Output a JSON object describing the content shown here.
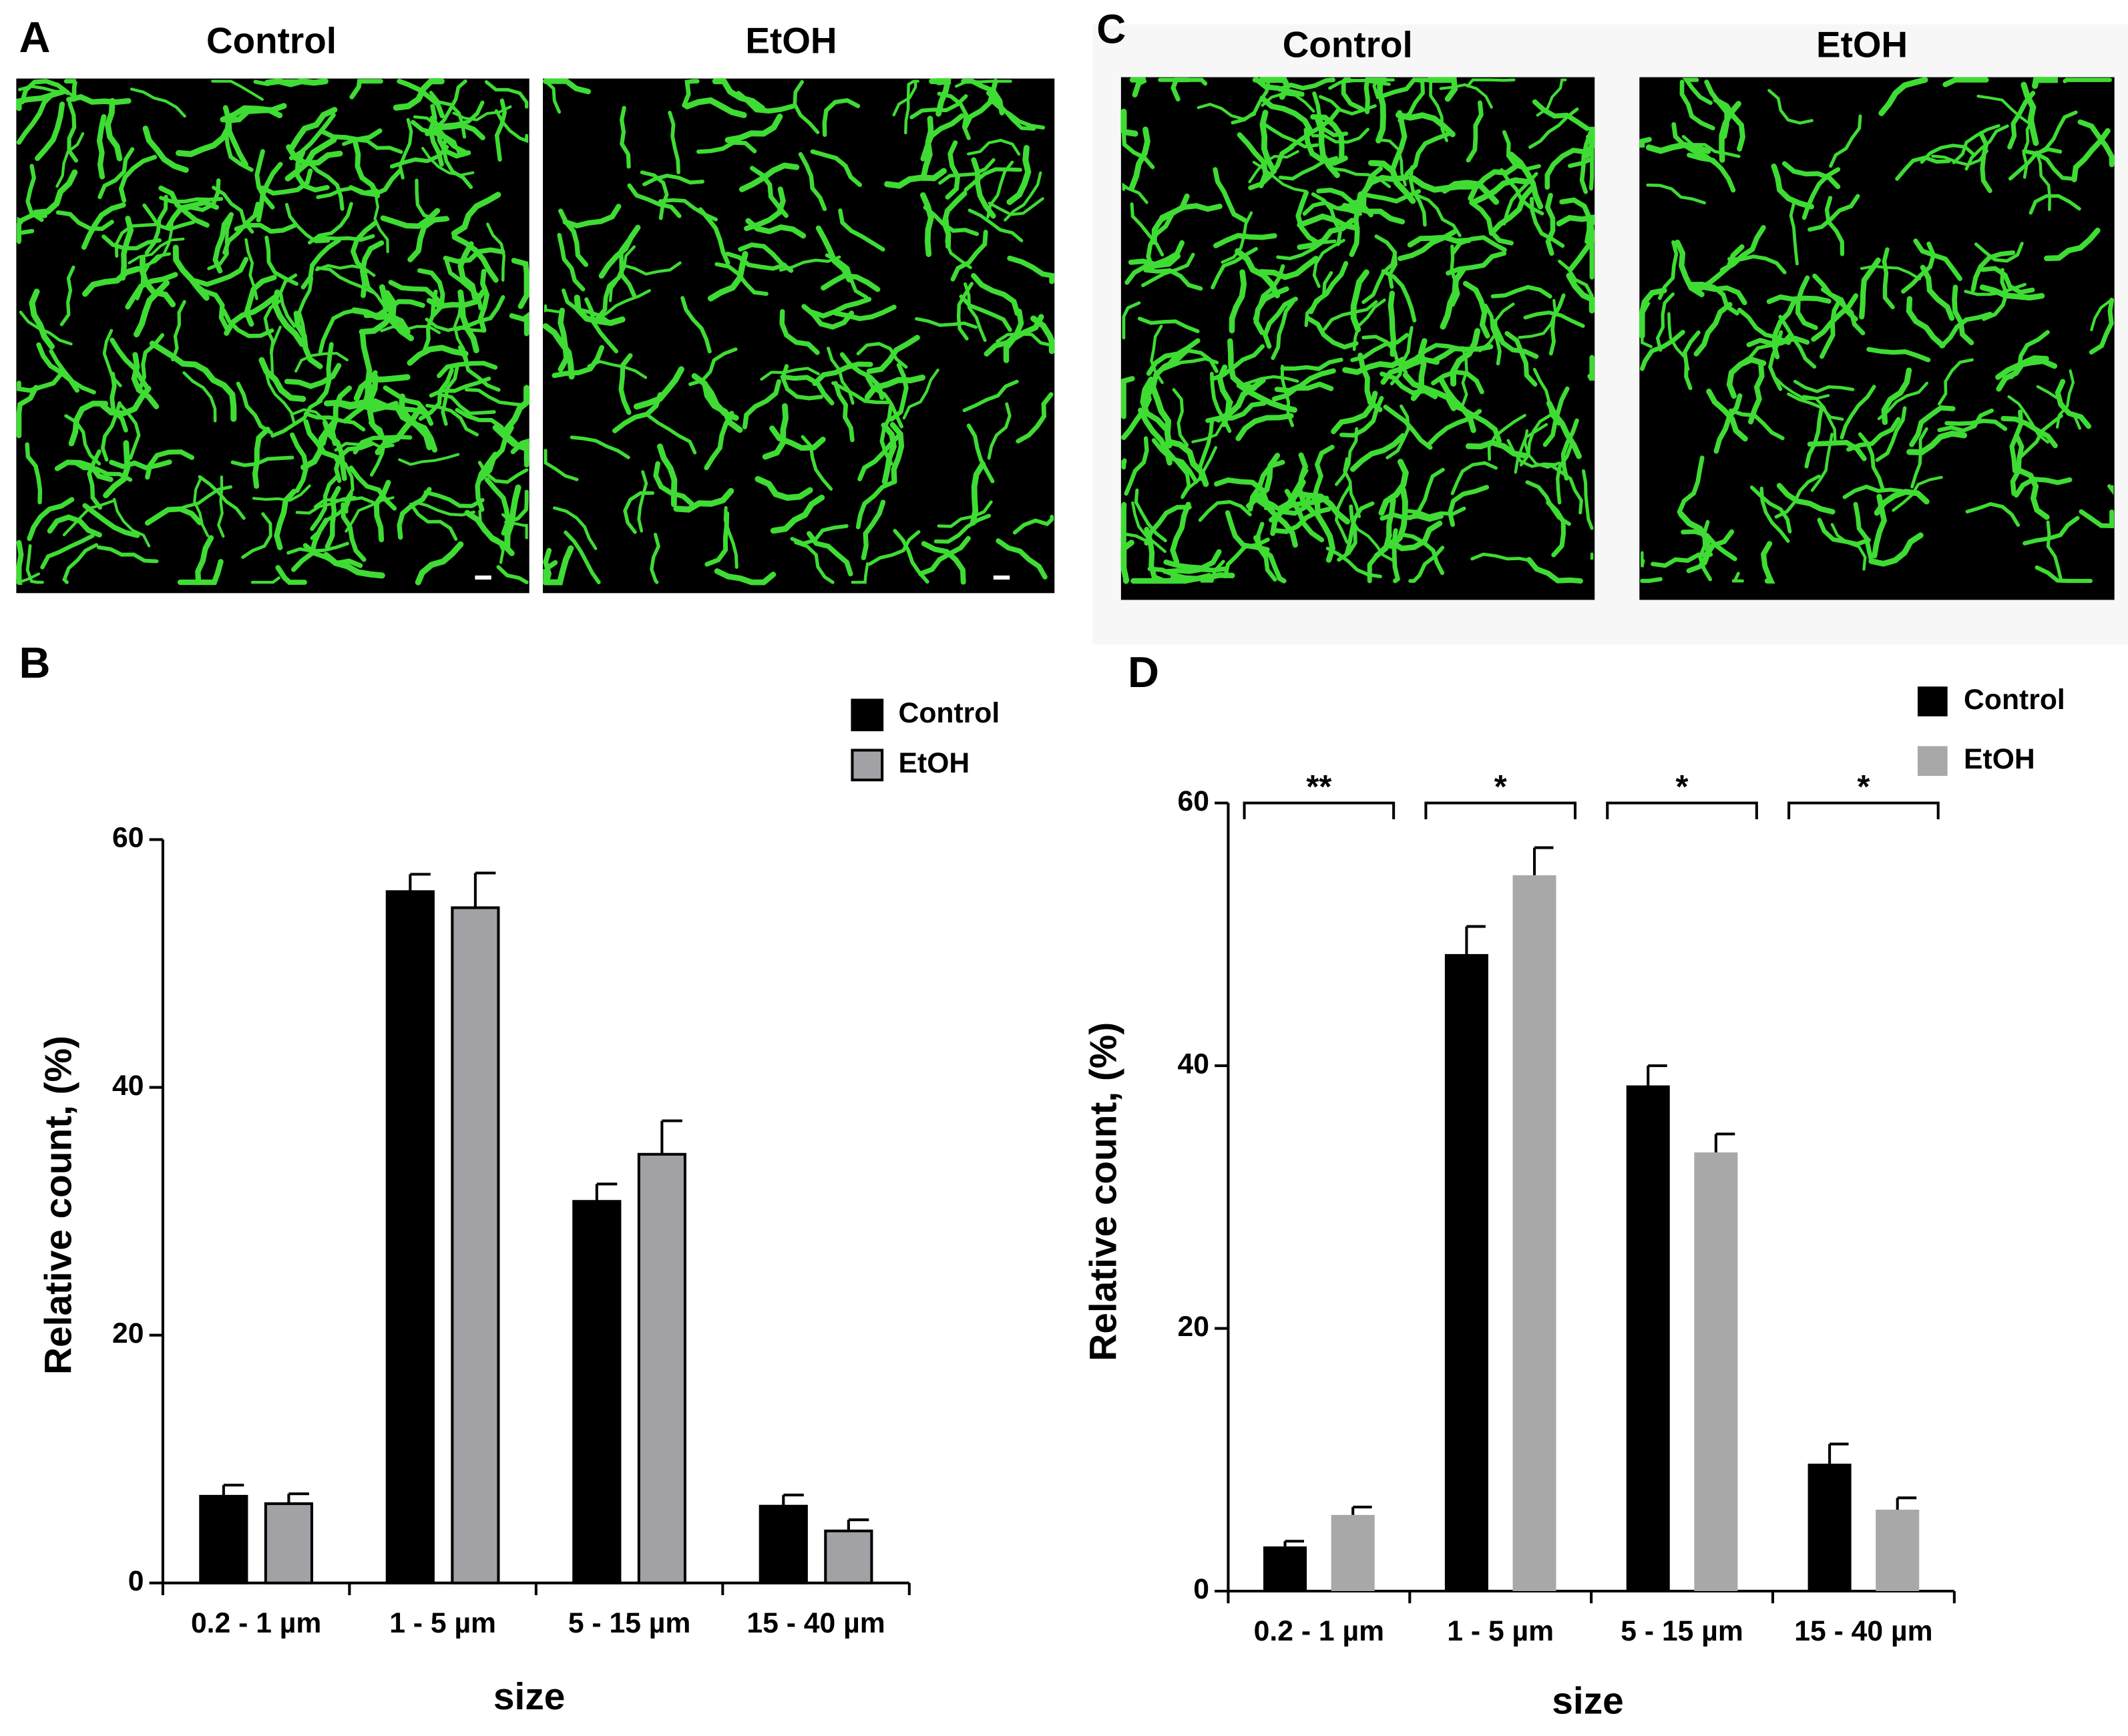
{
  "panels": [
    {
      "letter": "A",
      "images": [
        "Control",
        "EtOH"
      ]
    },
    {
      "letter": "C",
      "images": [
        "Control",
        "EtOH"
      ]
    }
  ],
  "chart_data": [
    {
      "type": "bar",
      "panel": "B",
      "x_label": "size",
      "y_label": "Relative count, (%)",
      "categories": [
        "0.2 - 1 µm",
        "1 - 5 µm",
        "5 - 15 µm",
        "15 - 40 µm"
      ],
      "series": [
        {
          "name": "Control",
          "color": "#000000",
          "values": [
            7.0,
            55.8,
            30.8,
            6.2
          ],
          "errors": [
            0.9,
            1.4,
            1.4,
            0.9
          ]
        },
        {
          "name": "EtOH",
          "color": "#a2a2a6",
          "values": [
            6.4,
            54.5,
            34.6,
            4.2
          ],
          "errors": [
            0.8,
            2.8,
            2.7,
            0.9
          ]
        }
      ],
      "bar_outline": true,
      "ylim": [
        0,
        60
      ],
      "yticks": [
        0,
        20,
        40,
        60
      ],
      "legend": "upper right"
    },
    {
      "type": "bar",
      "panel": "D",
      "x_label": "size",
      "y_label": "Relative count, (%)",
      "categories": [
        "0.2 - 1 µm",
        "1 - 5 µm",
        "5 - 15 µm",
        "15 - 40 µm"
      ],
      "series": [
        {
          "name": "Control",
          "color": "#000000",
          "values": [
            3.4,
            48.5,
            38.5,
            9.7
          ],
          "errors": [
            0.4,
            2.1,
            1.5,
            1.5
          ]
        },
        {
          "name": "EtOH",
          "color": "#a8a8a8",
          "values": [
            5.8,
            54.5,
            33.4,
            6.2
          ],
          "errors": [
            0.6,
            2.1,
            1.4,
            0.9
          ]
        }
      ],
      "bar_outline": false,
      "annotations": [
        "**",
        "*",
        "*",
        "*"
      ],
      "ylim": [
        0,
        60
      ],
      "yticks": [
        0,
        20,
        40,
        60
      ],
      "legend": "upper right"
    }
  ]
}
